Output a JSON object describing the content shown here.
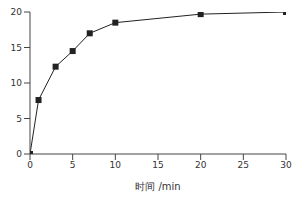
{
  "chart_data": {
    "type": "line",
    "x_label": "时间 /min",
    "x": [
      0,
      1,
      3,
      5,
      7,
      10,
      20,
      30
    ],
    "values": [
      0,
      7.6,
      12.3,
      14.5,
      17.0,
      18.5,
      19.7,
      20.0
    ],
    "color": "#222222",
    "marker": "square",
    "line_style": "solid",
    "xlim": [
      0,
      30
    ],
    "xticks": [
      0,
      5,
      10,
      15,
      20,
      25,
      30
    ],
    "ylim": [
      0,
      20
    ],
    "yticks": [
      0,
      5,
      10,
      15,
      20
    ],
    "grid": false
  }
}
